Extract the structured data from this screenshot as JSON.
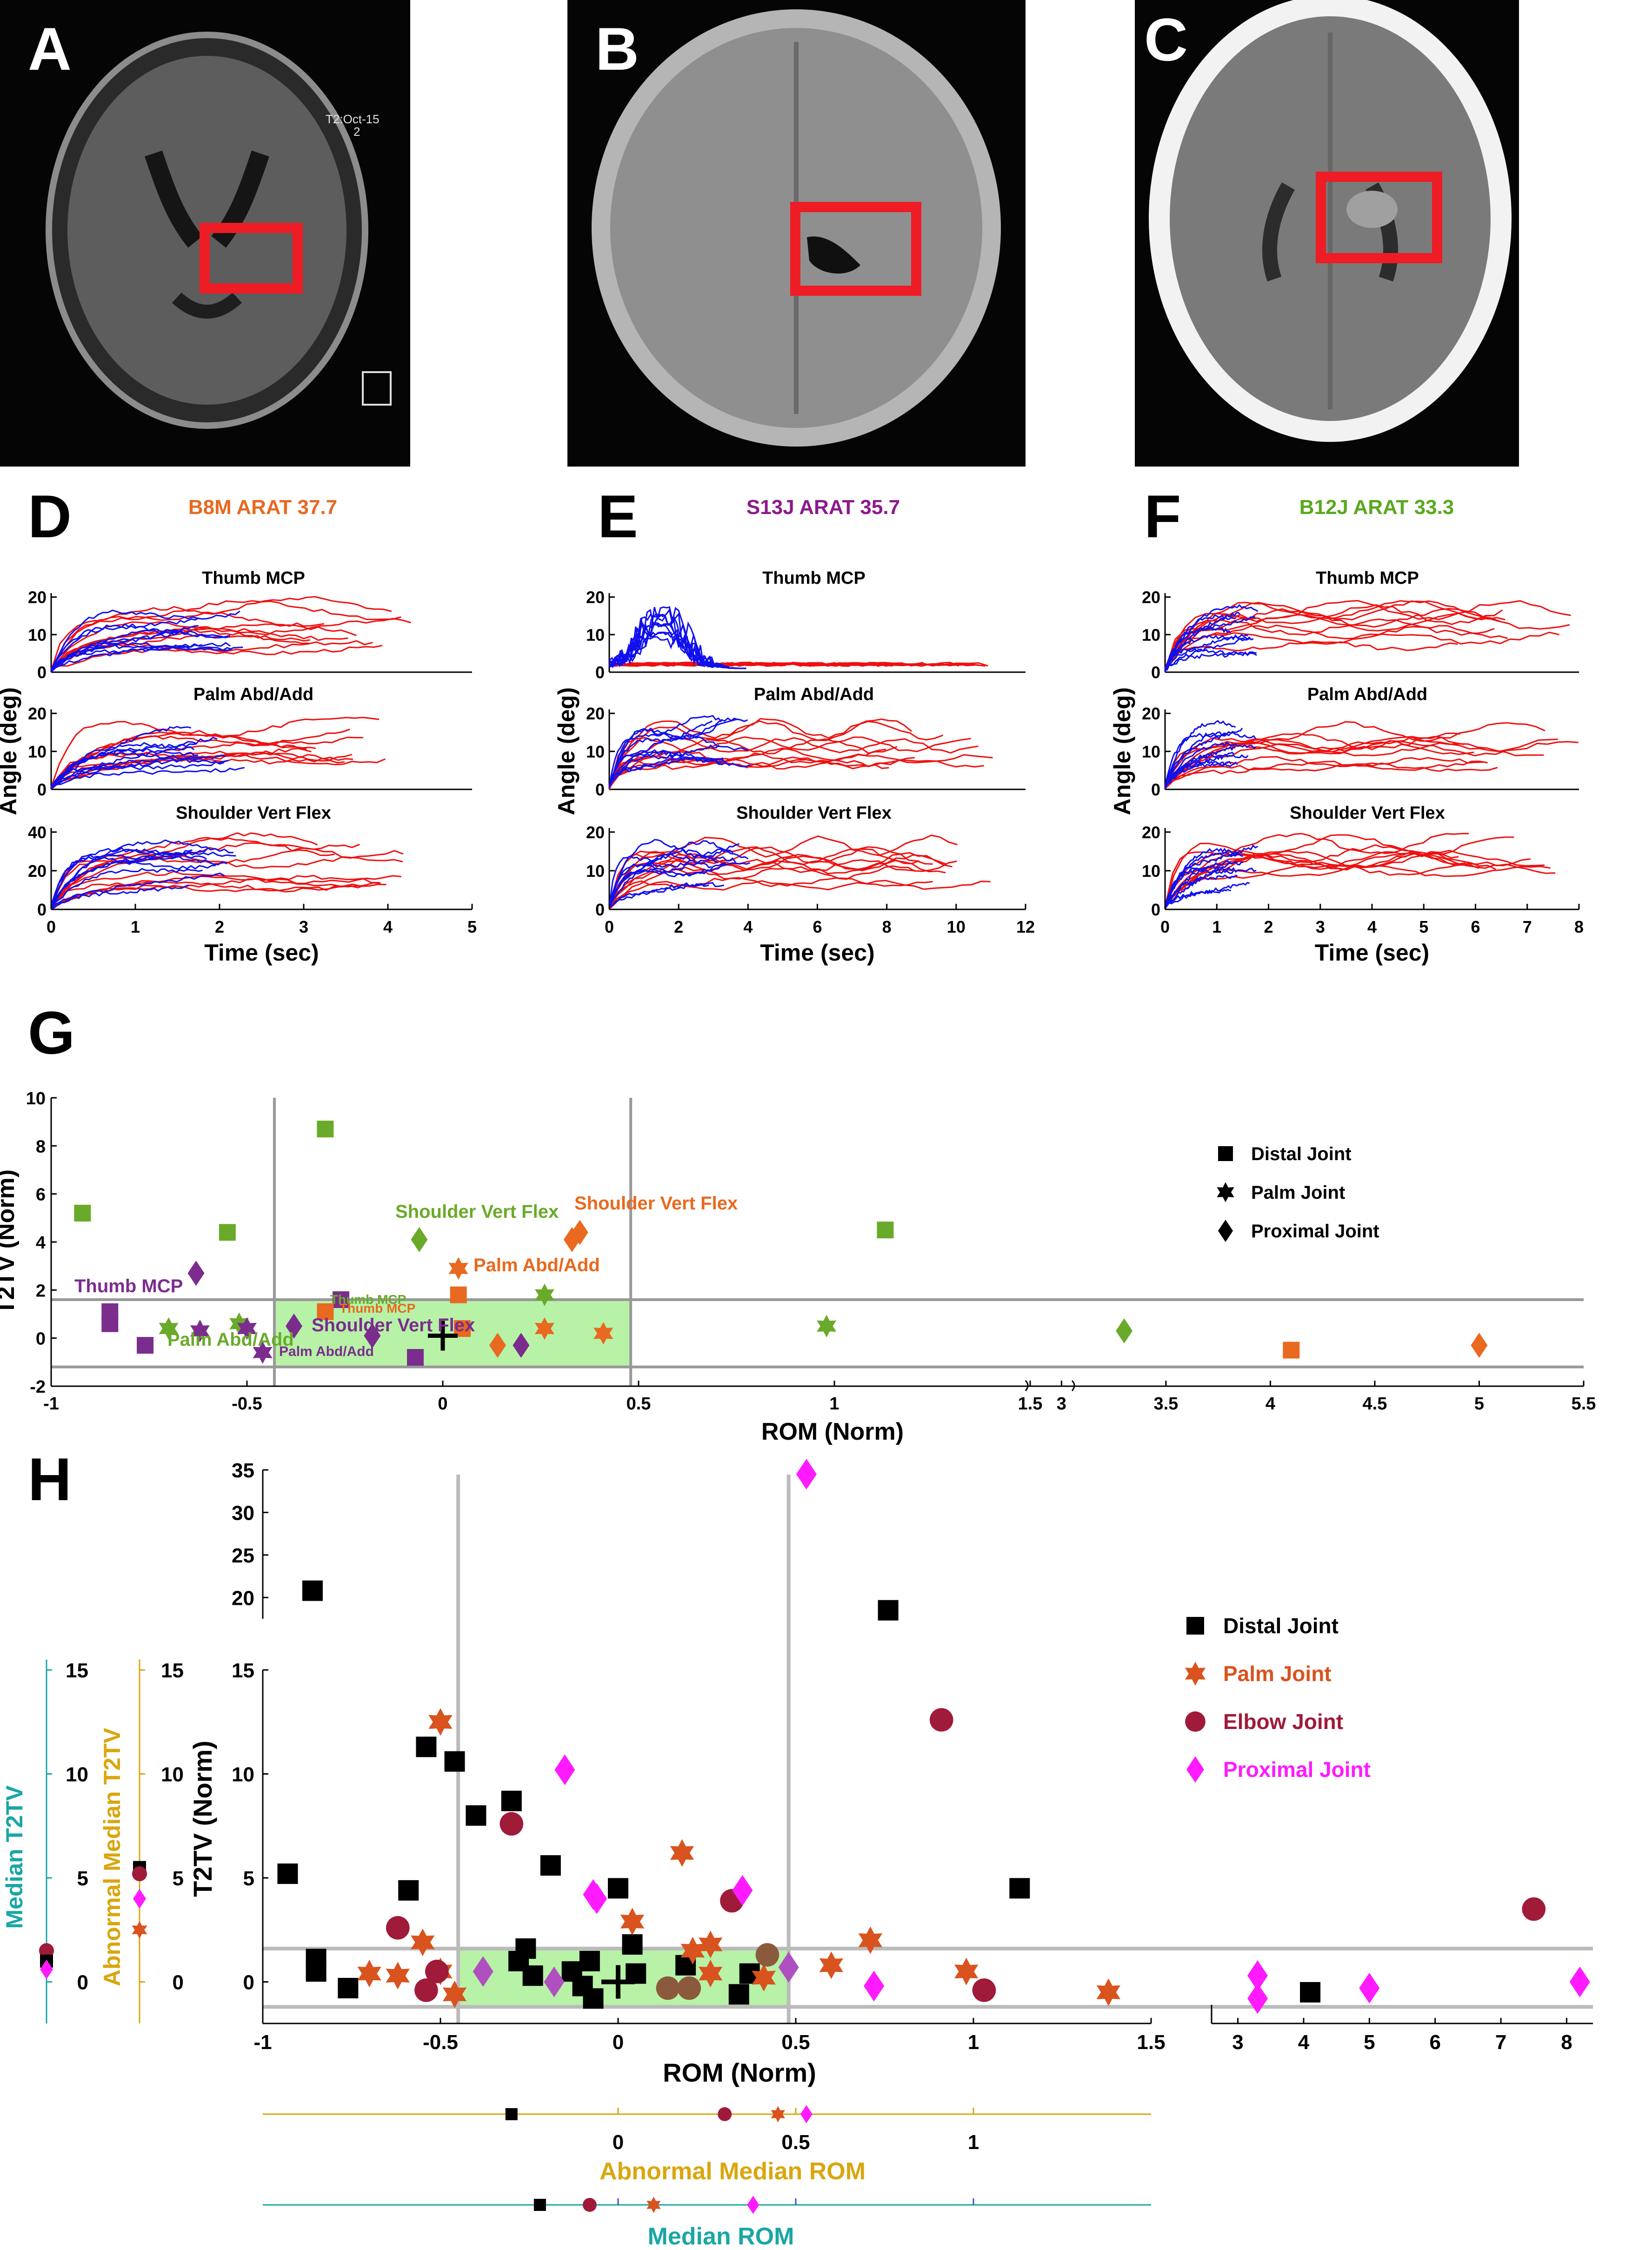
{
  "panel_letters": {
    "A": "A",
    "B": "B",
    "C": "C",
    "D": "D",
    "E": "E",
    "F": "F",
    "G": "G",
    "H": "H"
  },
  "scan_a_annotation": {
    "date": "T2:Oct-15",
    "line2": "2"
  },
  "colors": {
    "blue_trace": "#1010ee",
    "red_trace": "#ee1010",
    "green": "#6aaa2a",
    "purple": "#7b2d8e",
    "orange": "#e8691f",
    "black": "#000000",
    "palm": "#d9531e",
    "elbow": "#a01a3a",
    "proximal": "#ff1aff",
    "teal": "#1aa6a6",
    "gold": "#d9a60e",
    "roi": "#ee1c25",
    "normal_band": "#b7f2a7"
  },
  "panels_def": {
    "D": {
      "title": "B8M ARAT 37.7",
      "title_color": "#e8691f",
      "subplots": [
        "Thumb MCP",
        "Palm Abd/Add",
        "Shoulder Vert Flex"
      ],
      "yticks": [
        [
          "0",
          "10",
          "20"
        ],
        [
          "0",
          "10",
          "20"
        ],
        [
          "0",
          "20",
          "40"
        ]
      ],
      "xticks": [
        "0",
        "1",
        "2",
        "3",
        "4",
        "5"
      ],
      "xlabel": "Time (sec)",
      "ylabel": "Angle (deg)"
    },
    "E": {
      "title": "S13J ARAT 35.7",
      "title_color": "#8b1a8b",
      "subplots": [
        "Thumb MCP",
        "Palm Abd/Add",
        "Shoulder Vert Flex"
      ],
      "yticks": [
        [
          "0",
          "10",
          "20"
        ],
        [
          "0",
          "10",
          "20"
        ],
        [
          "0",
          "10",
          "20"
        ]
      ],
      "xticks": [
        "0",
        "2",
        "4",
        "6",
        "8",
        "10",
        "12"
      ],
      "xlabel": "Time (sec)",
      "ylabel": "Angle (deg)"
    },
    "F": {
      "title": "B12J ARAT 33.3",
      "title_color": "#5aa81e",
      "subplots": [
        "Thumb MCP",
        "Palm Abd/Add",
        "Shoulder Vert Flex"
      ],
      "yticks": [
        [
          "0",
          "10",
          "20"
        ],
        [
          "0",
          "10",
          "20"
        ],
        [
          "0",
          "10",
          "20"
        ]
      ],
      "xticks": [
        "0",
        "1",
        "2",
        "3",
        "4",
        "5",
        "6",
        "7",
        "8"
      ],
      "xlabel": "Time (sec)",
      "ylabel": "Angle (deg)"
    }
  },
  "chart_data": [
    {
      "id": "G",
      "type": "scatter",
      "xlabel": "ROM (Norm)",
      "ylabel": "T2TV (Norm)",
      "xticks_left": [
        "-1",
        "-0.5",
        "0",
        "0.5",
        "1",
        "1.5"
      ],
      "xticks_right": [
        "3",
        "3.5",
        "4",
        "4.5",
        "5",
        "5.5"
      ],
      "yticks": [
        "-2",
        "0",
        "2",
        "4",
        "6",
        "8",
        "10"
      ],
      "legend": [
        {
          "label": "Distal Joint",
          "shape": "square"
        },
        {
          "label": "Palm Joint",
          "shape": "star"
        },
        {
          "label": "Proximal Joint",
          "shape": "diamond"
        }
      ],
      "annotations": [
        "Shoulder Vert Flex",
        "Shoulder Vert Flex",
        "Palm Abd/Add",
        "Thumb MCP",
        "Palm Abd/Add",
        "Thumb MCP",
        "Thumb MCP",
        "Shoulder Vert Flex",
        "Palm Abd/Add"
      ],
      "normal_region": {
        "x": [
          -0.43,
          0.48
        ],
        "y": [
          -1.2,
          1.6
        ]
      },
      "points": [
        {
          "x": -0.92,
          "y": 5.2,
          "shape": "square",
          "color": "#6aaa2a"
        },
        {
          "x": -0.55,
          "y": 4.4,
          "shape": "square",
          "color": "#6aaa2a"
        },
        {
          "x": -0.3,
          "y": 8.7,
          "shape": "square",
          "color": "#6aaa2a"
        },
        {
          "x": 1.13,
          "y": 4.5,
          "shape": "square",
          "color": "#6aaa2a"
        },
        {
          "x": -0.7,
          "y": 0.4,
          "shape": "star",
          "color": "#6aaa2a"
        },
        {
          "x": -0.52,
          "y": 0.6,
          "shape": "star",
          "color": "#6aaa2a"
        },
        {
          "x": 0.26,
          "y": 1.8,
          "shape": "star",
          "color": "#6aaa2a"
        },
        {
          "x": 0.98,
          "y": 0.5,
          "shape": "star",
          "color": "#6aaa2a"
        },
        {
          "x": -0.06,
          "y": 4.1,
          "shape": "diamond",
          "color": "#6aaa2a"
        },
        {
          "x": 3.3,
          "y": 0.3,
          "shape": "diamond",
          "color": "#6aaa2a"
        },
        {
          "x": -0.85,
          "y": 1.1,
          "shape": "square",
          "color": "#7b2d8e"
        },
        {
          "x": -0.85,
          "y": 0.6,
          "shape": "square",
          "color": "#7b2d8e"
        },
        {
          "x": -0.76,
          "y": -0.3,
          "shape": "square",
          "color": "#7b2d8e"
        },
        {
          "x": -0.26,
          "y": 1.6,
          "shape": "square",
          "color": "#7b2d8e"
        },
        {
          "x": -0.07,
          "y": -0.8,
          "shape": "square",
          "color": "#7b2d8e"
        },
        {
          "x": -0.62,
          "y": 0.3,
          "shape": "star",
          "color": "#7b2d8e"
        },
        {
          "x": -0.5,
          "y": 0.4,
          "shape": "star",
          "color": "#7b2d8e"
        },
        {
          "x": -0.46,
          "y": -0.6,
          "shape": "star",
          "color": "#7b2d8e"
        },
        {
          "x": -0.63,
          "y": 2.7,
          "shape": "diamond",
          "color": "#7b2d8e"
        },
        {
          "x": -0.38,
          "y": 0.5,
          "shape": "diamond",
          "color": "#7b2d8e"
        },
        {
          "x": -0.18,
          "y": 0.1,
          "shape": "diamond",
          "color": "#7b2d8e"
        },
        {
          "x": 0.2,
          "y": -0.3,
          "shape": "diamond",
          "color": "#7b2d8e"
        },
        {
          "x": -0.3,
          "y": 1.1,
          "shape": "square",
          "color": "#e8691f"
        },
        {
          "x": 0.04,
          "y": 1.8,
          "shape": "square",
          "color": "#e8691f"
        },
        {
          "x": 0.05,
          "y": 0.4,
          "shape": "square",
          "color": "#e8691f"
        },
        {
          "x": 4.1,
          "y": -0.5,
          "shape": "square",
          "color": "#e8691f"
        },
        {
          "x": 0.04,
          "y": 2.9,
          "shape": "star",
          "color": "#e8691f"
        },
        {
          "x": 0.26,
          "y": 0.4,
          "shape": "star",
          "color": "#e8691f"
        },
        {
          "x": 0.41,
          "y": 0.2,
          "shape": "star",
          "color": "#e8691f"
        },
        {
          "x": 0.33,
          "y": 4.1,
          "shape": "diamond",
          "color": "#e8691f"
        },
        {
          "x": 0.35,
          "y": 4.4,
          "shape": "diamond",
          "color": "#e8691f"
        },
        {
          "x": 0.14,
          "y": -0.3,
          "shape": "diamond",
          "color": "#e8691f"
        },
        {
          "x": 5.0,
          "y": -0.3,
          "shape": "diamond",
          "color": "#e8691f"
        }
      ],
      "center_marker": {
        "x": 0.0,
        "y": 0.1
      }
    },
    {
      "id": "H",
      "type": "scatter",
      "xlabel": "ROM (Norm)",
      "ylabel": "T2TV (Norm)",
      "xticks_left": [
        "-1",
        "-0.5",
        "0",
        "0.5",
        "1",
        "1.5"
      ],
      "xticks_right": [
        "3",
        "4",
        "5",
        "6",
        "7",
        "8"
      ],
      "yticks_lower": [
        "0",
        "5",
        "10",
        "15"
      ],
      "yticks_upper": [
        "20",
        "25",
        "30",
        "35"
      ],
      "legend": [
        {
          "label": "Distal Joint",
          "shape": "square",
          "color": "#000000"
        },
        {
          "label": "Palm Joint",
          "shape": "star",
          "color": "#d9531e"
        },
        {
          "label": "Elbow Joint",
          "shape": "circle",
          "color": "#a01a3a"
        },
        {
          "label": "Proximal Joint",
          "shape": "diamond",
          "color": "#ff1aff"
        }
      ],
      "normal_region": {
        "x": [
          -0.45,
          0.48
        ],
        "y": [
          -1.2,
          1.6
        ]
      },
      "side_axes": {
        "median_t2tv_label": "Median T2TV",
        "abnormal_median_t2tv_label": "Abnormal Median T2TV",
        "yticks": [
          "0",
          "5",
          "10",
          "15"
        ],
        "abnormal_median_rom_label": "Abnormal Median ROM",
        "median_rom_label": "Median ROM",
        "rom_ticks": [
          "0",
          "0.5",
          "1"
        ]
      },
      "points": [
        {
          "x": -0.93,
          "y": 5.2,
          "shape": "square",
          "color": "#000000"
        },
        {
          "x": -0.85,
          "y": 1.1,
          "shape": "square",
          "color": "#000000"
        },
        {
          "x": -0.85,
          "y": 0.5,
          "shape": "square",
          "color": "#000000"
        },
        {
          "x": -0.76,
          "y": -0.3,
          "shape": "square",
          "color": "#000000"
        },
        {
          "x": -0.59,
          "y": 4.4,
          "shape": "square",
          "color": "#000000"
        },
        {
          "x": -0.54,
          "y": 11.3,
          "shape": "square",
          "color": "#000000"
        },
        {
          "x": -0.46,
          "y": 10.6,
          "shape": "square",
          "color": "#000000"
        },
        {
          "x": -0.4,
          "y": 8.0,
          "shape": "square",
          "color": "#000000"
        },
        {
          "x": -0.3,
          "y": 8.7,
          "shape": "square",
          "color": "#000000"
        },
        {
          "x": -0.28,
          "y": 1.0,
          "shape": "square",
          "color": "#000000"
        },
        {
          "x": -0.26,
          "y": 1.6,
          "shape": "square",
          "color": "#000000"
        },
        {
          "x": -0.24,
          "y": 0.3,
          "shape": "square",
          "color": "#000000"
        },
        {
          "x": -0.19,
          "y": 5.6,
          "shape": "square",
          "color": "#000000"
        },
        {
          "x": -0.13,
          "y": 0.5,
          "shape": "square",
          "color": "#000000"
        },
        {
          "x": -0.1,
          "y": -0.2,
          "shape": "square",
          "color": "#000000"
        },
        {
          "x": -0.08,
          "y": 1.0,
          "shape": "square",
          "color": "#000000"
        },
        {
          "x": -0.07,
          "y": -0.8,
          "shape": "square",
          "color": "#000000"
        },
        {
          "x": 0.0,
          "y": 4.5,
          "shape": "square",
          "color": "#000000"
        },
        {
          "x": 0.04,
          "y": 1.8,
          "shape": "square",
          "color": "#000000"
        },
        {
          "x": 0.05,
          "y": 0.4,
          "shape": "square",
          "color": "#000000"
        },
        {
          "x": 0.19,
          "y": 0.8,
          "shape": "square",
          "color": "#000000"
        },
        {
          "x": 0.34,
          "y": -0.6,
          "shape": "square",
          "color": "#000000"
        },
        {
          "x": 0.37,
          "y": 0.4,
          "shape": "square",
          "color": "#000000"
        },
        {
          "x": 0.76,
          "y": 18.5,
          "shape": "square",
          "color": "#000000"
        },
        {
          "x": 1.13,
          "y": 4.5,
          "shape": "square",
          "color": "#000000"
        },
        {
          "x": 4.1,
          "y": -0.5,
          "shape": "square",
          "color": "#000000"
        },
        {
          "x": -0.86,
          "y": 20.8,
          "shape": "square",
          "color": "#000000"
        },
        {
          "x": -0.7,
          "y": 0.4,
          "shape": "star",
          "color": "#d9531e"
        },
        {
          "x": -0.62,
          "y": 0.3,
          "shape": "star",
          "color": "#d9531e"
        },
        {
          "x": -0.55,
          "y": 1.9,
          "shape": "star",
          "color": "#d9531e"
        },
        {
          "x": -0.5,
          "y": 12.5,
          "shape": "star",
          "color": "#d9531e"
        },
        {
          "x": -0.46,
          "y": -0.6,
          "shape": "star",
          "color": "#d9531e"
        },
        {
          "x": -0.5,
          "y": 0.5,
          "shape": "star",
          "color": "#d9531e"
        },
        {
          "x": 0.04,
          "y": 2.9,
          "shape": "star",
          "color": "#d9531e"
        },
        {
          "x": 0.18,
          "y": 6.2,
          "shape": "star",
          "color": "#d9531e"
        },
        {
          "x": 0.21,
          "y": 1.5,
          "shape": "star",
          "color": "#d9531e"
        },
        {
          "x": 0.26,
          "y": 1.8,
          "shape": "star",
          "color": "#d9531e"
        },
        {
          "x": 0.26,
          "y": 0.4,
          "shape": "star",
          "color": "#d9531e"
        },
        {
          "x": 0.41,
          "y": 0.2,
          "shape": "star",
          "color": "#d9531e"
        },
        {
          "x": 0.6,
          "y": 0.8,
          "shape": "star",
          "color": "#d9531e"
        },
        {
          "x": 0.71,
          "y": 2.0,
          "shape": "star",
          "color": "#d9531e"
        },
        {
          "x": 0.98,
          "y": 0.5,
          "shape": "star",
          "color": "#d9531e"
        },
        {
          "x": 1.38,
          "y": -0.5,
          "shape": "star",
          "color": "#d9531e"
        },
        {
          "x": -0.62,
          "y": 2.6,
          "shape": "circle",
          "color": "#a01a3a"
        },
        {
          "x": -0.54,
          "y": -0.4,
          "shape": "circle",
          "color": "#a01a3a"
        },
        {
          "x": -0.51,
          "y": 0.5,
          "shape": "circle",
          "color": "#a01a3a"
        },
        {
          "x": -0.3,
          "y": 7.6,
          "shape": "circle",
          "color": "#a01a3a"
        },
        {
          "x": 0.32,
          "y": 3.9,
          "shape": "circle",
          "color": "#a01a3a"
        },
        {
          "x": 0.91,
          "y": 12.6,
          "shape": "circle",
          "color": "#a01a3a"
        },
        {
          "x": 1.03,
          "y": -0.4,
          "shape": "circle",
          "color": "#a01a3a"
        },
        {
          "x": 7.5,
          "y": 3.5,
          "shape": "circle",
          "color": "#a01a3a"
        },
        {
          "x": 0.14,
          "y": -0.3,
          "shape": "circle",
          "color": "#8b5a3c"
        },
        {
          "x": 0.2,
          "y": -0.3,
          "shape": "circle",
          "color": "#8b5a3c"
        },
        {
          "x": 0.42,
          "y": 1.3,
          "shape": "circle",
          "color": "#8b5a3c"
        },
        {
          "x": -0.15,
          "y": 10.2,
          "shape": "diamond",
          "color": "#ff1aff"
        },
        {
          "x": -0.07,
          "y": 4.2,
          "shape": "diamond",
          "color": "#ff1aff"
        },
        {
          "x": -0.06,
          "y": 4.0,
          "shape": "diamond",
          "color": "#ff1aff"
        },
        {
          "x": 0.35,
          "y": 4.4,
          "shape": "diamond",
          "color": "#ff1aff"
        },
        {
          "x": 0.53,
          "y": 34.5,
          "shape": "diamond",
          "color": "#ff1aff"
        },
        {
          "x": 0.72,
          "y": -0.2,
          "shape": "diamond",
          "color": "#ff1aff"
        },
        {
          "x": 3.3,
          "y": 0.3,
          "shape": "diamond",
          "color": "#ff1aff"
        },
        {
          "x": 3.3,
          "y": -0.8,
          "shape": "diamond",
          "color": "#ff1aff"
        },
        {
          "x": 5.0,
          "y": -0.3,
          "shape": "diamond",
          "color": "#ff1aff"
        },
        {
          "x": 8.2,
          "y": 0.0,
          "shape": "diamond",
          "color": "#ff1aff"
        },
        {
          "x": -0.38,
          "y": 0.5,
          "shape": "diamond",
          "color": "#b050c0"
        },
        {
          "x": -0.18,
          "y": 0.0,
          "shape": "diamond",
          "color": "#b050c0"
        },
        {
          "x": 0.48,
          "y": 0.7,
          "shape": "diamond",
          "color": "#b050c0"
        }
      ],
      "center_marker": {
        "x": 0.0,
        "y": 0.0
      },
      "median_t2tv": [
        {
          "y": 1.5,
          "shape": "circle",
          "color": "#a01a3a"
        },
        {
          "y": 1.0,
          "shape": "square",
          "color": "#000000"
        },
        {
          "y": 0.6,
          "shape": "diamond",
          "color": "#ff1aff"
        }
      ],
      "abnormal_median_t2tv": [
        {
          "y": 5.5,
          "shape": "square",
          "color": "#000000"
        },
        {
          "y": 5.2,
          "shape": "circle",
          "color": "#a01a3a"
        },
        {
          "y": 4.0,
          "shape": "diamond",
          "color": "#ff1aff"
        },
        {
          "y": 2.5,
          "shape": "star",
          "color": "#d9531e"
        }
      ],
      "abnormal_median_rom": [
        {
          "x": -0.3,
          "shape": "square",
          "color": "#000000"
        },
        {
          "x": 0.3,
          "shape": "circle",
          "color": "#a01a3a"
        },
        {
          "x": 0.45,
          "shape": "star",
          "color": "#d9531e"
        },
        {
          "x": 0.53,
          "shape": "diamond",
          "color": "#ff1aff"
        }
      ],
      "median_rom": [
        {
          "x": -0.22,
          "shape": "square",
          "color": "#000000"
        },
        {
          "x": -0.08,
          "shape": "circle",
          "color": "#a01a3a"
        },
        {
          "x": 0.1,
          "shape": "star",
          "color": "#d9531e"
        },
        {
          "x": 0.38,
          "shape": "diamond",
          "color": "#ff1aff"
        }
      ]
    }
  ]
}
